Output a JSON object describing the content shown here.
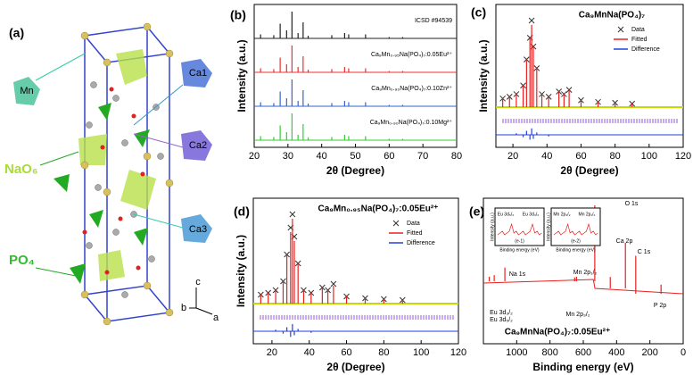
{
  "panel_a": {
    "label": "(a)",
    "atoms": [
      "Mn",
      "Ca1",
      "Ca2",
      "Ca3"
    ],
    "polyhedra": [
      "NaO₆",
      "PO₄"
    ],
    "axes": [
      "c",
      "b",
      "a"
    ]
  },
  "chart_data": [
    {
      "type": "xrd",
      "label": "(b)",
      "xlabel": "2θ (Degree)",
      "ylabel": "Intensity (a.u.)",
      "xlim": [
        20,
        80
      ],
      "xticks": [
        20,
        30,
        40,
        50,
        60,
        70,
        80
      ],
      "annotation": "ICSD #94539",
      "series": [
        {
          "name": "Ca₉Mn₀.₉₀Na(PO₄)₇:0.10Mg²⁺",
          "color": "#33cc33",
          "x": [
            21.9,
            25.8,
            27.7,
            29.6,
            31.2,
            33.0,
            34.5,
            36.0,
            43.0,
            46.8,
            48.0,
            53.0,
            60.0,
            64.0
          ],
          "values": [
            15,
            12,
            55,
            30,
            100,
            20,
            60,
            10,
            12,
            20,
            15,
            15,
            5,
            5
          ]
        },
        {
          "name": "Ca₉Mn₀.₉₀Na(PO₄)₇:0.10Zn²⁺",
          "color": "#3366cc",
          "x": [
            21.9,
            25.8,
            27.7,
            29.6,
            31.2,
            33.0,
            34.5,
            36.0,
            43.0,
            46.8,
            48.0,
            53.0,
            60.0,
            64.0
          ],
          "values": [
            15,
            12,
            55,
            30,
            100,
            20,
            60,
            10,
            12,
            20,
            15,
            15,
            5,
            5
          ]
        },
        {
          "name": "Ca₉Mn₀.₉₅Na(PO₄)₇:0.05Eu²⁺",
          "color": "#e83030",
          "x": [
            21.9,
            25.8,
            27.7,
            29.6,
            31.2,
            33.0,
            34.5,
            36.0,
            43.0,
            46.8,
            48.0,
            53.0,
            60.0,
            64.0
          ],
          "values": [
            15,
            12,
            55,
            30,
            100,
            20,
            60,
            10,
            12,
            20,
            15,
            15,
            5,
            5
          ]
        },
        {
          "name": "",
          "color": "#222222",
          "x": [
            21.9,
            25.8,
            27.7,
            29.6,
            31.2,
            33.0,
            34.5,
            36.0,
            43.0,
            46.8,
            48.0,
            53.0,
            60.0,
            64.0
          ],
          "values": [
            15,
            12,
            55,
            30,
            100,
            20,
            60,
            10,
            12,
            20,
            15,
            15,
            5,
            5
          ]
        }
      ]
    },
    {
      "type": "rietveld",
      "label": "(c)",
      "title": "Ca₉MnNa(PO₄)₇",
      "xlabel": "2θ (Degree)",
      "ylabel": "Intensity (a.u.)",
      "xlim": [
        10,
        120
      ],
      "xticks": [
        20,
        40,
        60,
        80,
        100,
        120
      ],
      "series": [
        {
          "name": "Data",
          "color": "#333333",
          "x": [
            14,
            18,
            22,
            26,
            28,
            30,
            31,
            32,
            34,
            37,
            41,
            47,
            50,
            53,
            60,
            70,
            80,
            90
          ],
          "values": [
            10,
            12,
            15,
            25,
            55,
            80,
            100,
            70,
            45,
            15,
            12,
            18,
            15,
            20,
            8,
            6,
            5,
            4
          ]
        },
        {
          "name": "Fitted",
          "color": "#e82020",
          "x": [
            14,
            18,
            22,
            26,
            28,
            30,
            31,
            32,
            34,
            37,
            41,
            47,
            50,
            53,
            60,
            70,
            80,
            90
          ],
          "values": [
            10,
            12,
            15,
            25,
            55,
            80,
            95,
            70,
            45,
            15,
            12,
            18,
            15,
            20,
            8,
            6,
            5,
            4
          ]
        },
        {
          "name": "Difference",
          "color": "#2040e0",
          "x": [
            22,
            26,
            28,
            30,
            31,
            32,
            34,
            41
          ],
          "values": [
            2,
            -3,
            5,
            -6,
            8,
            -5,
            3,
            -2
          ]
        }
      ]
    },
    {
      "type": "rietveld",
      "label": "(d)",
      "title": "Ca₉Mn₀.₉₅Na(PO₄)₇:0.05Eu²⁺",
      "xlabel": "2θ (Degree)",
      "ylabel": "Intensity (a.u.)",
      "xlim": [
        10,
        120
      ],
      "xticks": [
        20,
        40,
        60,
        80,
        100,
        120
      ],
      "series": [
        {
          "name": "Data",
          "color": "#333333",
          "x": [
            14,
            18,
            22,
            26,
            28,
            30,
            31,
            32,
            34,
            37,
            41,
            47,
            50,
            53,
            60,
            70,
            80,
            90
          ],
          "values": [
            10,
            12,
            15,
            25,
            55,
            85,
            100,
            75,
            45,
            15,
            12,
            18,
            15,
            22,
            8,
            6,
            5,
            4
          ]
        },
        {
          "name": "Fitted",
          "color": "#e82020",
          "x": [
            14,
            18,
            22,
            26,
            28,
            30,
            31,
            32,
            34,
            37,
            41,
            47,
            50,
            53,
            60,
            70,
            80,
            90
          ],
          "values": [
            10,
            12,
            15,
            25,
            55,
            80,
            95,
            70,
            45,
            15,
            12,
            18,
            15,
            20,
            8,
            6,
            5,
            4
          ]
        },
        {
          "name": "Difference",
          "color": "#2040e0",
          "x": [
            22,
            26,
            28,
            30,
            31,
            32,
            34,
            41
          ],
          "values": [
            2,
            -3,
            5,
            -7,
            9,
            -5,
            3,
            -2
          ]
        }
      ]
    },
    {
      "type": "xps",
      "label": "(e)",
      "xlabel": "Binding energy (eV)",
      "caption": "Ca₉MnNa(PO₄)₇:0.05Eu²⁺",
      "xlim": [
        1200,
        0
      ],
      "xticks": [
        1000,
        800,
        600,
        400,
        200,
        0
      ],
      "series": [
        {
          "color": "#e82020",
          "x": [
            1165,
            1135,
            1071,
            652,
            641,
            531,
            438,
            347,
            285,
            133
          ],
          "values": [
            6,
            8,
            18,
            5,
            6,
            100,
            15,
            60,
            50,
            12
          ]
        }
      ],
      "annotations": [
        "Na 1s",
        "Eu 3d₃/₂",
        "Eu 3d₅/₂",
        "Mn 2p₁/₂",
        "Mn 2p₃/₂",
        "O 1s",
        "Ca 2p",
        "C 1s",
        "P 2p"
      ],
      "insets": [
        {
          "label": "(e-1)",
          "xlabel": "Binding energy (eV)",
          "ylabel": "Intensity (a.u.)",
          "peaks": [
            "Eu 3d₅/₂",
            "Eu 3d₃/₂"
          ]
        },
        {
          "label": "(e-2)",
          "xlabel": "Binding energy (eV)",
          "ylabel": "Intensity (a.u.)",
          "peaks": [
            "Mn 2p₃/₂",
            "Mn 2p₁/₂"
          ]
        }
      ]
    }
  ]
}
